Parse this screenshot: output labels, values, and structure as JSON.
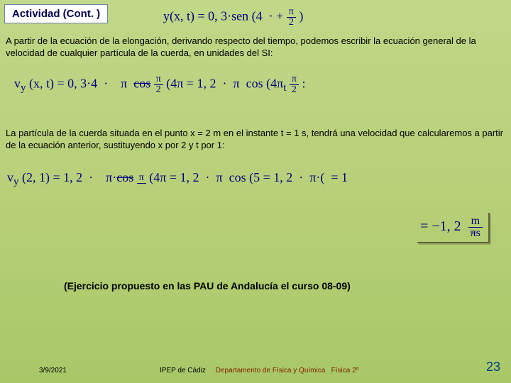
{
  "header": {
    "activity_label": "Actividad (Cont. )"
  },
  "equations": {
    "main": "y(x, t) = 0, 3·sen (4   · + π⁄2 )",
    "vel_general": "v_y (x, t) = 0, 3·4   ·   π   cos π⁄2 (4π = 1, 2   ·   π   cos (4π + π⁄2 )",
    "vel_particle": "v_y (2, 1) = 1, 2   ·   π·cos π (4π = 1, 2   ·   π   cos (5 = 1, 2   ·   π·(  − 1)",
    "result": "= −1, 2   π  m⁄s"
  },
  "paragraphs": {
    "p1": "A partir de la ecuación de la elongación, derivando respecto del tiempo, podemos escribir la ecuación general de la velocidad de cualquier partícula de la cuerda, en unidades del SI:",
    "p2": "La partícula de la cuerda situada en el punto x = 2 m en el instante t = 1 s, tendrá una velocidad que calcularemos a partir de la ecuación anterior, sustituyendo x por 2 y t por 1:"
  },
  "pau_note": "(Ejercicio propuesto en las PAU de Andalucía el curso 08-09)",
  "footer": {
    "date": "3/9/2021",
    "center_a": "IPEP de Cádiz",
    "center_b": "Departamento de Física y Química",
    "center_c": "Física 2º",
    "page": "23"
  }
}
